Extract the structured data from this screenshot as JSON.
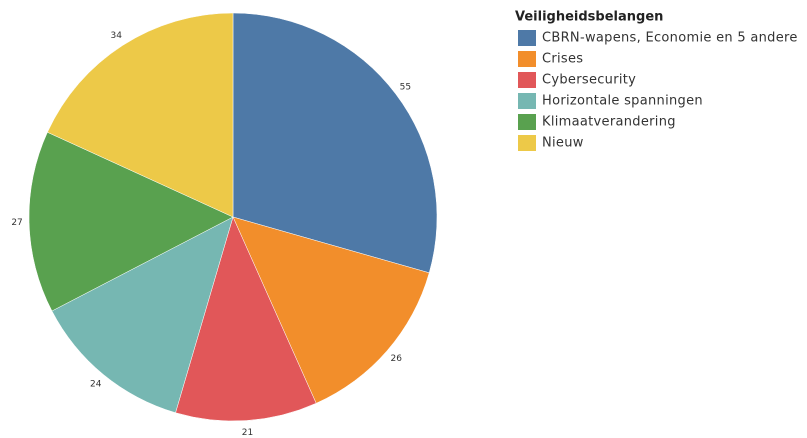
{
  "chart_data": {
    "type": "pie",
    "legend_title": "Veiligheidsbelangen",
    "categories": [
      "CBRN-wapens, Economie en 5 andere",
      "Crises",
      "Cybersecurity",
      "Horizontale spanningen",
      "Klimaatverandering",
      "Nieuw"
    ],
    "values": [
      55,
      26,
      21,
      24,
      27,
      34
    ],
    "colors": [
      "#4e79a7",
      "#f28e2b",
      "#e15759",
      "#76b7b2",
      "#59a14f",
      "#edc948"
    ]
  }
}
